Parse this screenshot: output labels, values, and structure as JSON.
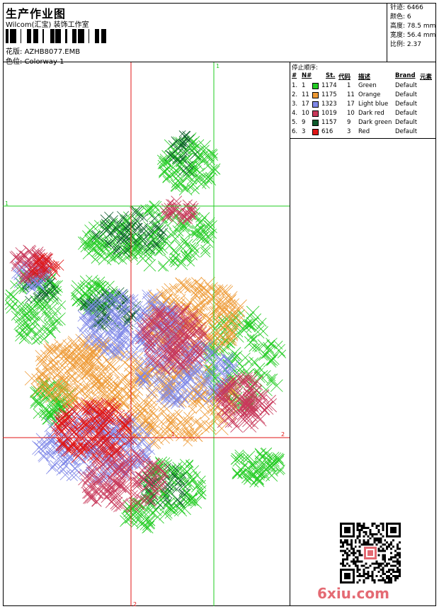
{
  "header": {
    "title": "生产作业图",
    "company": "Wilcom(汇宝) 装饰工作室",
    "design_label": "花版:",
    "design_file": "AZHB8077.EMB",
    "colorway_label": "色位:",
    "colorway": "Colorway 1"
  },
  "stats": [
    {
      "label": "针迹:",
      "value": "6466"
    },
    {
      "label": "颜色:",
      "value": "6"
    },
    {
      "label": "高度:",
      "value": "78.5 mm"
    },
    {
      "label": "宽度:",
      "value": "56.4 mm"
    },
    {
      "label": "比例:",
      "value": "2.37"
    }
  ],
  "legend": {
    "title": "停止顺序:",
    "headers": {
      "hash": "#",
      "no": "N#",
      "st": "St.",
      "code": "代码",
      "desc": "描述",
      "brand": "Brand",
      "elem": "元素"
    },
    "rows": [
      {
        "num": "1.",
        "no": "1",
        "st": "1174",
        "code": "1",
        "desc": "Green",
        "brand": "Default",
        "color": "#22cc22"
      },
      {
        "num": "2.",
        "no": "11",
        "st": "1175",
        "code": "11",
        "desc": "Orange",
        "brand": "Default",
        "color": "#ee9933"
      },
      {
        "num": "3.",
        "no": "17",
        "st": "1323",
        "code": "17",
        "desc": "Light blue",
        "brand": "Default",
        "color": "#7f88e8"
      },
      {
        "num": "4.",
        "no": "10",
        "st": "1019",
        "code": "10",
        "desc": "Dark red",
        "brand": "Default",
        "color": "#c8385a"
      },
      {
        "num": "5.",
        "no": "9",
        "st": "1157",
        "code": "9",
        "desc": "Dark green",
        "brand": "Default",
        "color": "#0d5b2c"
      },
      {
        "num": "6.",
        "no": "3",
        "st": "616",
        "code": "3",
        "desc": "Red",
        "brand": "Default",
        "color": "#e01515"
      }
    ]
  },
  "guides": {
    "v1": "1",
    "h1": "1",
    "h2": "2",
    "v2": "2",
    "center": "1"
  },
  "logo": "6xiu.com",
  "colors": {
    "guide_green": "#22cc22",
    "guide_red": "#e01515",
    "logo": "#e46a73"
  }
}
